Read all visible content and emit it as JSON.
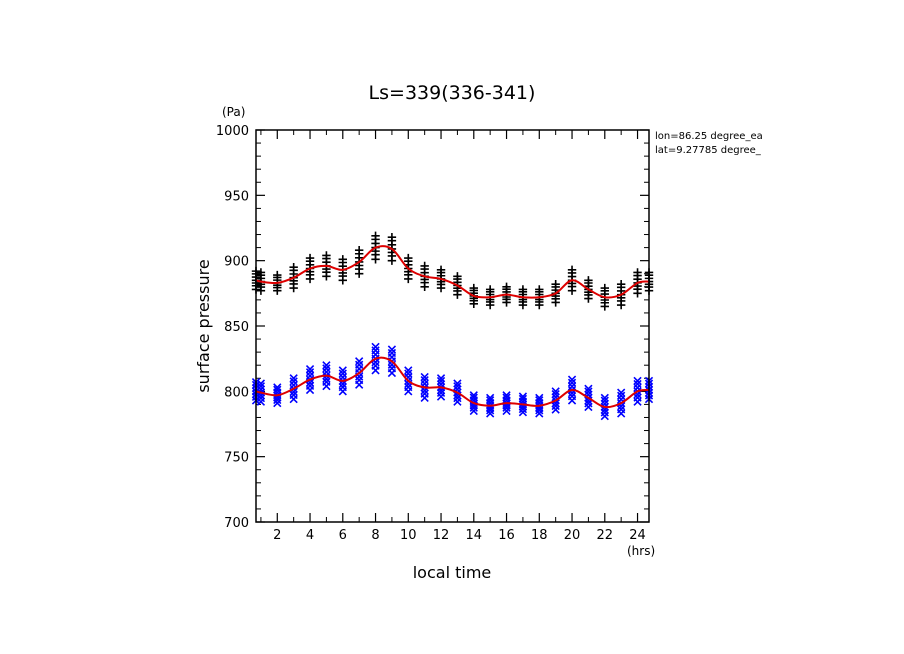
{
  "chart_data": {
    "type": "scatter",
    "title": "Ls=339(336-341)",
    "xlabel": "local time",
    "ylabel": "surface pressure",
    "x_unit": "(hrs)",
    "y_unit": "(Pa)",
    "xlim": [
      0.7,
      24.7
    ],
    "ylim": [
      700,
      1000
    ],
    "x_ticks": [
      2,
      4,
      6,
      8,
      10,
      12,
      14,
      16,
      18,
      20,
      22,
      24
    ],
    "y_ticks": [
      700,
      750,
      800,
      850,
      900,
      950,
      1000
    ],
    "grid": false,
    "annotations": [
      "lon=86.25 degree_ea",
      "lat=9.27785 degree_"
    ],
    "colors": {
      "upper_markers": "#000000",
      "lower_markers": "#0000ff",
      "fit_line": "#dd0000"
    },
    "hours": [
      0.7,
      1,
      2,
      3,
      4,
      5,
      6,
      7,
      8,
      9,
      10,
      11,
      12,
      13,
      14,
      15,
      16,
      17,
      18,
      19,
      20,
      21,
      22,
      23,
      24,
      24.7
    ],
    "series": [
      {
        "marker": "plus",
        "color": "#000000",
        "y": [
          885,
          884,
          883,
          887,
          894,
          896,
          893,
          899,
          910,
          909,
          894,
          888,
          886,
          881,
          873,
          872,
          874,
          872,
          872,
          875,
          885,
          878,
          872,
          874,
          883,
          884
        ],
        "spread": [
          7,
          7,
          6,
          8,
          8,
          8,
          8,
          9,
          9,
          9,
          8,
          8,
          7,
          7,
          6,
          6,
          6,
          6,
          6,
          7,
          8,
          7,
          7,
          8,
          8,
          7
        ]
      },
      {
        "marker": "x",
        "color": "#0000ff",
        "y": [
          800,
          799,
          797,
          802,
          809,
          812,
          808,
          814,
          825,
          823,
          808,
          803,
          803,
          799,
          791,
          789,
          791,
          790,
          789,
          793,
          801,
          795,
          788,
          791,
          800,
          801
        ],
        "spread": [
          7,
          7,
          6,
          8,
          8,
          8,
          8,
          9,
          9,
          9,
          8,
          8,
          7,
          7,
          6,
          6,
          6,
          6,
          6,
          7,
          8,
          7,
          7,
          8,
          8,
          7
        ]
      }
    ],
    "fit_lines": [
      {
        "color": "#dd0000",
        "x": [
          0.7,
          1,
          2,
          3,
          4,
          5,
          6,
          7,
          8,
          9,
          10,
          11,
          12,
          13,
          14,
          15,
          16,
          17,
          18,
          19,
          20,
          21,
          22,
          23,
          24,
          24.7
        ],
        "y": [
          885,
          884,
          883,
          887,
          894,
          896,
          893,
          899,
          910,
          909,
          894,
          888,
          886,
          881,
          873,
          872,
          874,
          872,
          872,
          875,
          885,
          878,
          872,
          874,
          883,
          884
        ]
      },
      {
        "color": "#dd0000",
        "x": [
          0.7,
          1,
          2,
          3,
          4,
          5,
          6,
          7,
          8,
          9,
          10,
          11,
          12,
          13,
          14,
          15,
          16,
          17,
          18,
          19,
          20,
          21,
          22,
          23,
          24,
          24.7
        ],
        "y": [
          800,
          799,
          797,
          802,
          809,
          812,
          808,
          814,
          825,
          823,
          808,
          803,
          803,
          799,
          791,
          789,
          791,
          790,
          789,
          793,
          801,
          795,
          788,
          791,
          800,
          801
        ]
      }
    ]
  }
}
